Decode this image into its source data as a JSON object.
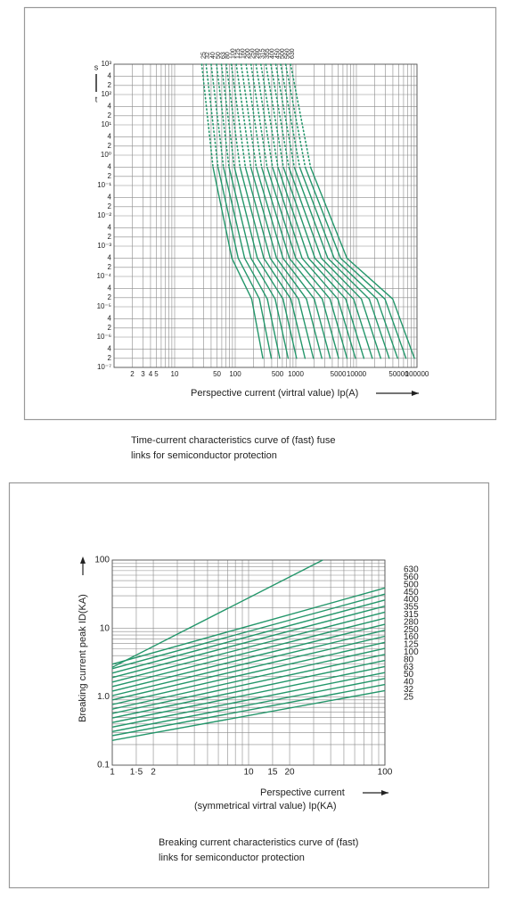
{
  "chart_data": [
    {
      "type": "line",
      "xscale": "log",
      "yscale": "log",
      "grid": true,
      "series_labels": "top",
      "ylabel_top": "s",
      "ylabel_bottom": "t",
      "xlabel": "Perspective current (virtral value) Ip(A)",
      "caption": [
        "Time-current characteristics curve of (fast) fuse",
        "links for semiconductor protection"
      ],
      "xlim": [
        1,
        100000
      ],
      "ylim": [
        1e-07,
        1000
      ],
      "xticks": [
        2,
        3,
        4,
        5,
        10,
        50,
        100,
        500,
        1000,
        5000,
        10000,
        50000,
        100000
      ],
      "xminor": [
        6,
        7,
        8,
        9,
        20,
        30,
        40,
        60,
        70,
        80,
        90,
        200,
        300,
        400,
        600,
        700,
        800,
        900,
        2000,
        3000,
        4000,
        6000,
        7000,
        8000,
        9000,
        20000,
        30000,
        40000,
        60000,
        70000,
        80000,
        90000
      ],
      "yticks": [
        {
          "value": 1000,
          "label": "10³"
        },
        {
          "value": 400,
          "label": "4"
        },
        {
          "value": 200,
          "label": "2"
        },
        {
          "value": 100,
          "label": "10²"
        },
        {
          "value": 40,
          "label": "4"
        },
        {
          "value": 20,
          "label": "2"
        },
        {
          "value": 10,
          "label": "10¹"
        },
        4,
        2,
        {
          "value": 1,
          "label": "10⁰"
        },
        {
          "value": 0.4,
          "label": "4"
        },
        {
          "value": 0.2,
          "label": "2"
        },
        {
          "value": 0.1,
          "label": "10⁻¹"
        },
        {
          "value": 0.04,
          "label": "4"
        },
        {
          "value": 0.02,
          "label": "2"
        },
        {
          "value": 0.01,
          "label": "10⁻²"
        },
        {
          "value": 0.004,
          "label": "4"
        },
        {
          "value": 0.002,
          "label": "2"
        },
        {
          "value": 0.001,
          "label": "10⁻³"
        },
        {
          "value": 0.0004,
          "label": "4"
        },
        {
          "value": 0.0002,
          "label": "2"
        },
        {
          "value": 0.0001,
          "label": "10⁻⁴"
        },
        {
          "value": 4e-05,
          "label": "4"
        },
        {
          "value": 2e-05,
          "label": "2"
        },
        {
          "value": 1e-05,
          "label": "10⁻⁵"
        },
        {
          "value": 4e-06,
          "label": "4"
        },
        {
          "value": 2e-06,
          "label": "2"
        },
        {
          "value": 1e-06,
          "label": "10⁻⁶"
        },
        {
          "value": 4e-07,
          "label": "4"
        },
        {
          "value": 2e-07,
          "label": "2"
        },
        {
          "value": 1e-07,
          "label": "10⁻⁷"
        }
      ],
      "dotted_above": 0.4,
      "series": [
        {
          "name": "25",
          "color": "#23966a",
          "x": [
            28,
            43,
            88,
            187,
            286
          ],
          "values": [
            1000,
            0.4,
            0.0004,
            1.8e-05,
            2e-07
          ]
        },
        {
          "name": "32",
          "color": "#23966a",
          "x": [
            33,
            52,
            112,
            251,
            394
          ],
          "values": [
            1000,
            0.4,
            0.0004,
            1.8e-05,
            2e-07
          ]
        },
        {
          "name": "40",
          "color": "#23966a",
          "x": [
            40,
            64,
            143,
            339,
            543
          ],
          "values": [
            1000,
            0.4,
            0.0004,
            1.8e-05,
            2e-07
          ]
        },
        {
          "name": "50",
          "color": "#23966a",
          "x": [
            49,
            79,
            182,
            456,
            748
          ],
          "values": [
            1000,
            0.4,
            0.0004,
            1.8e-05,
            2e-07
          ]
        },
        {
          "name": "63",
          "color": "#23966a",
          "x": [
            59,
            97,
            232,
            615,
            1030
          ],
          "values": [
            1000,
            0.4,
            0.0004,
            1.8e-05,
            2e-07
          ]
        },
        {
          "name": "80",
          "color": "#23966a",
          "x": [
            71,
            120,
            296,
            828,
            1420
          ],
          "values": [
            1000,
            0.4,
            0.0004,
            1.8e-05,
            2e-07
          ]
        },
        {
          "name": "100",
          "color": "#23966a",
          "x": [
            86,
            147,
            378,
            1110,
            1950
          ],
          "values": [
            1000,
            0.4,
            0.0004,
            1.8e-05,
            2e-07
          ]
        },
        {
          "name": "125",
          "color": "#23966a",
          "x": [
            104,
            181,
            481,
            1500,
            2690
          ],
          "values": [
            1000,
            0.4,
            0.0004,
            1.8e-05,
            2e-07
          ]
        },
        {
          "name": "160",
          "color": "#23966a",
          "x": [
            125,
            222,
            614,
            2020,
            3700
          ],
          "values": [
            1000,
            0.4,
            0.0004,
            1.8e-05,
            2e-07
          ]
        },
        {
          "name": "200",
          "color": "#23966a",
          "x": [
            151,
            273,
            782,
            2730,
            5090
          ],
          "values": [
            1000,
            0.4,
            0.0004,
            1.8e-05,
            2e-07
          ]
        },
        {
          "name": "250",
          "color": "#23966a",
          "x": [
            182,
            336,
            998,
            3670,
            7010
          ],
          "values": [
            1000,
            0.4,
            0.0004,
            1.8e-05,
            2e-07
          ]
        },
        {
          "name": "280",
          "color": "#23966a",
          "x": [
            220,
            413,
            1270,
            4940,
            9660
          ],
          "values": [
            1000,
            0.4,
            0.0004,
            1.8e-05,
            2e-07
          ]
        },
        {
          "name": "315",
          "color": "#23966a",
          "x": [
            265,
            507,
            1620,
            6670,
            13300
          ],
          "values": [
            1000,
            0.4,
            0.0004,
            1.8e-05,
            2e-07
          ]
        },
        {
          "name": "355",
          "color": "#23966a",
          "x": [
            320,
            624,
            2070,
            8980,
            18300
          ],
          "values": [
            1000,
            0.4,
            0.0004,
            1.8e-05,
            2e-07
          ]
        },
        {
          "name": "400",
          "color": "#23966a",
          "x": [
            386,
            767,
            2640,
            12100,
            25200
          ],
          "values": [
            1000,
            0.4,
            0.0004,
            1.8e-05,
            2e-07
          ]
        },
        {
          "name": "450",
          "color": "#23966a",
          "x": [
            467,
            944,
            3370,
            16300,
            34800
          ],
          "values": [
            1000,
            0.4,
            0.0004,
            1.8e-05,
            2e-07
          ]
        },
        {
          "name": "500",
          "color": "#23966a",
          "x": [
            562,
            1160,
            4290,
            21900,
            47900
          ],
          "values": [
            1000,
            0.4,
            0.0004,
            1.8e-05,
            2e-07
          ]
        },
        {
          "name": "560",
          "color": "#23966a",
          "x": [
            679,
            1430,
            5470,
            29600,
            65800
          ],
          "values": [
            1000,
            0.4,
            0.0004,
            1.8e-05,
            2e-07
          ]
        },
        {
          "name": "630",
          "color": "#23966a",
          "x": [
            820,
            1750,
            6980,
            39800,
            90600
          ],
          "values": [
            1000,
            0.4,
            0.0004,
            1.8e-05,
            2e-07
          ]
        }
      ]
    },
    {
      "type": "line",
      "xscale": "log",
      "yscale": "log",
      "grid": true,
      "series_labels": "right",
      "ylabel": "Breaking current peak ID(KA)",
      "xlabel": [
        "Perspective current",
        "(symmetrical virtral value) Ip(KA)"
      ],
      "caption": [
        "Breaking current characteristics curve of (fast)",
        "links for semiconductor protection"
      ],
      "xlim": [
        1,
        100
      ],
      "ylim": [
        0.1,
        100
      ],
      "xticks": [
        1,
        {
          "value": 1.5,
          "label": "1·5"
        },
        2,
        10,
        15,
        20,
        100
      ],
      "xminor": [
        3,
        4,
        5,
        6,
        7,
        8,
        9,
        30,
        40,
        50,
        60,
        70,
        80,
        90
      ],
      "yticks": [
        0.1,
        {
          "value": 1,
          "label": "1.0"
        },
        10,
        100
      ],
      "yminor": [
        0.2,
        0.3,
        0.4,
        0.5,
        0.6,
        0.7,
        0.8,
        0.9,
        2,
        3,
        4,
        5,
        6,
        7,
        8,
        9,
        20,
        30,
        40,
        50,
        60,
        70,
        80,
        90
      ],
      "series": [
        {
          "name": "25",
          "color": "#23966a",
          "x": [
            1,
            100
          ],
          "values": [
            0.23,
            1.23
          ]
        },
        {
          "name": "32",
          "color": "#23966a",
          "x": [
            1,
            100
          ],
          "values": [
            0.27,
            1.51
          ]
        },
        {
          "name": "40",
          "color": "#23966a",
          "x": [
            1,
            100
          ],
          "values": [
            0.31,
            1.85
          ]
        },
        {
          "name": "50",
          "color": "#23966a",
          "x": [
            1,
            100
          ],
          "values": [
            0.36,
            2.26
          ]
        },
        {
          "name": "63",
          "color": "#23966a",
          "x": [
            1,
            100
          ],
          "values": [
            0.42,
            2.77
          ]
        },
        {
          "name": "80",
          "color": "#23966a",
          "x": [
            1,
            100
          ],
          "values": [
            0.49,
            3.4
          ]
        },
        {
          "name": "100",
          "color": "#23966a",
          "x": [
            1,
            100
          ],
          "values": [
            0.57,
            4.17
          ]
        },
        {
          "name": "125",
          "color": "#23966a",
          "x": [
            1,
            100
          ],
          "values": [
            0.66,
            5.11
          ]
        },
        {
          "name": "160",
          "color": "#23966a",
          "x": [
            1,
            100
          ],
          "values": [
            0.77,
            6.26
          ]
        },
        {
          "name": "250",
          "color": "#23966a",
          "x": [
            1,
            100
          ],
          "values": [
            0.9,
            7.67
          ]
        },
        {
          "name": "280",
          "color": "#23966a",
          "x": [
            1,
            100
          ],
          "values": [
            1.04,
            9.4
          ]
        },
        {
          "name": "315",
          "color": "#23966a",
          "x": [
            1,
            100
          ],
          "values": [
            1.21,
            11.5
          ]
        },
        {
          "name": "355",
          "color": "#23966a",
          "x": [
            1,
            100
          ],
          "values": [
            1.41,
            14.1
          ]
        },
        {
          "name": "400",
          "color": "#23966a",
          "x": [
            1,
            100
          ],
          "values": [
            1.64,
            17.3
          ]
        },
        {
          "name": "450",
          "color": "#23966a",
          "x": [
            1,
            100
          ],
          "values": [
            1.91,
            21.2
          ]
        },
        {
          "name": "500",
          "color": "#23966a",
          "x": [
            1,
            100
          ],
          "values": [
            2.22,
            26
          ]
        },
        {
          "name": "560",
          "color": "#23966a",
          "x": [
            1,
            100
          ],
          "values": [
            2.58,
            31.8
          ]
        },
        {
          "name": "630",
          "color": "#23966a",
          "x": [
            1,
            100
          ],
          "values": [
            3,
            39
          ]
        },
        {
          "color": "#23966a",
          "x": [
            1,
            35
          ],
          "values": [
            2.7,
            100
          ]
        }
      ]
    }
  ]
}
